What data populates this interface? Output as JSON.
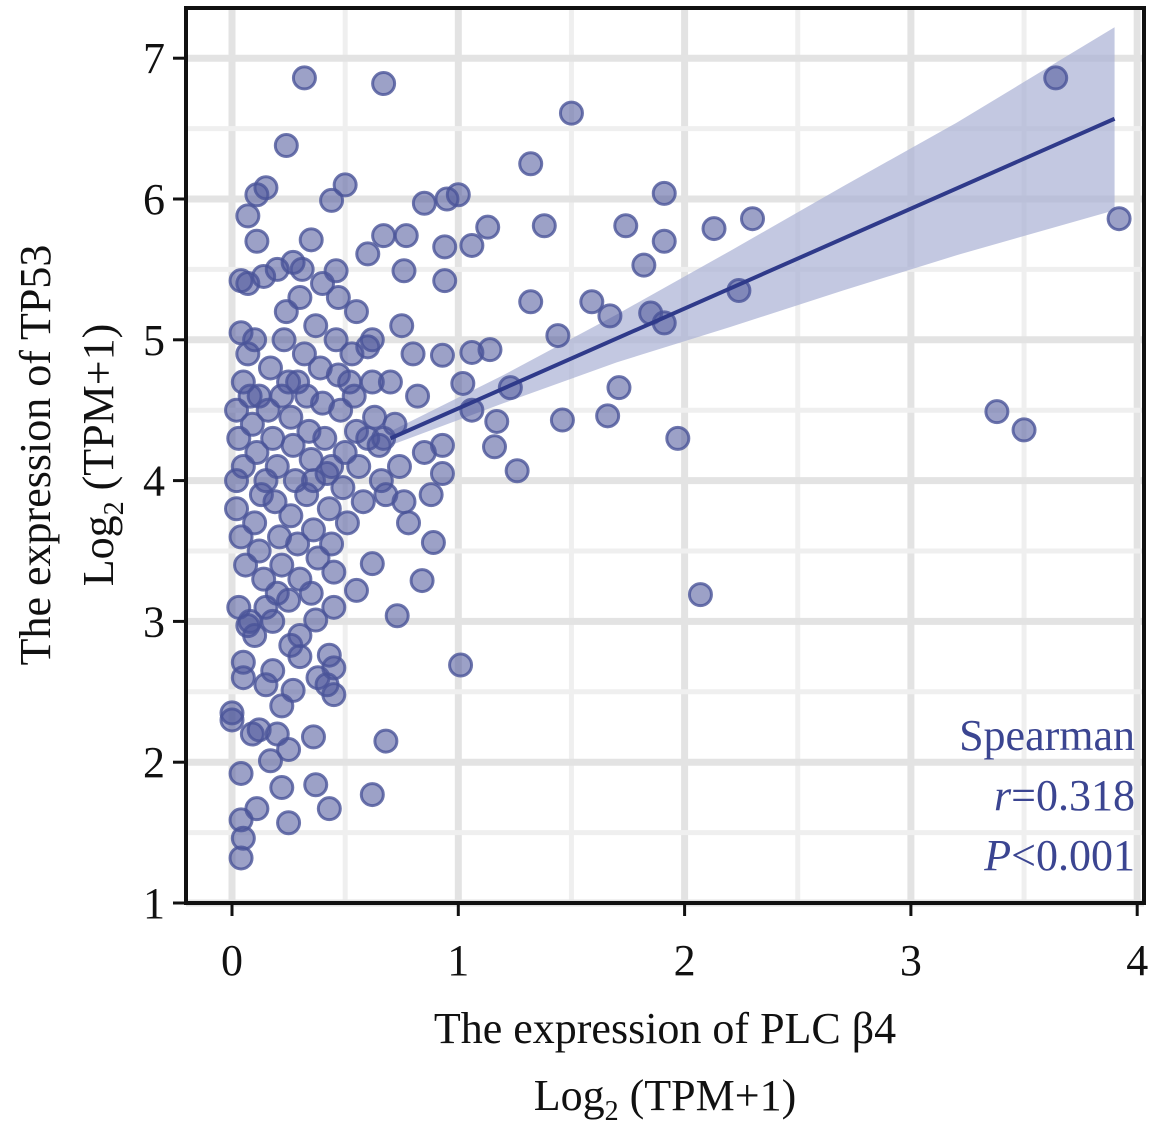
{
  "chart_data": {
    "type": "scatter",
    "title": "",
    "xlabel": "The expression of PLC β4",
    "xlabel_unit": "Log",
    "xlabel_sub": "2",
    "xlabel_tail": " (TPM+1)",
    "ylabel": "The expression of TP53",
    "ylabel_unit": "Log",
    "ylabel_sub": "2",
    "ylabel_tail": " (TPM+1)",
    "xlim": [
      -0.2,
      4.05
    ],
    "ylim": [
      1,
      7.35
    ],
    "xticks": [
      "0",
      "1",
      "2",
      "3",
      "4"
    ],
    "yticks": [
      "1",
      "2",
      "3",
      "4",
      "5",
      "6",
      "7"
    ],
    "grid": true,
    "colors": {
      "point": "#4a5499",
      "line": "#2f3a8a",
      "band": "#aab0d4",
      "text": "#3b4591"
    },
    "annotation": {
      "method": "Spearman",
      "r_label": "r",
      "r_value": "=0.318",
      "p_label": "P",
      "p_value": "<0.001"
    },
    "regression": {
      "x": [
        0.7,
        3.9
      ],
      "y": [
        4.3,
        6.57
      ]
    },
    "band": {
      "x": [
        0.7,
        1.2,
        1.7,
        2.2,
        2.7,
        3.2,
        3.9
      ],
      "upper": [
        4.35,
        4.75,
        5.18,
        5.63,
        6.09,
        6.54,
        7.22
      ],
      "lower": [
        4.25,
        4.55,
        4.84,
        5.09,
        5.35,
        5.6,
        5.92
      ]
    },
    "points": [
      [
        0.32,
        6.86
      ],
      [
        0.67,
        6.82
      ],
      [
        3.64,
        6.86
      ],
      [
        1.5,
        6.61
      ],
      [
        0.24,
        6.38
      ],
      [
        1.32,
        6.25
      ],
      [
        3.92,
        5.86
      ],
      [
        1.91,
        6.04
      ],
      [
        2.3,
        5.86
      ],
      [
        1.74,
        5.81
      ],
      [
        1.38,
        5.81
      ],
      [
        2.13,
        5.79
      ],
      [
        1.91,
        5.7
      ],
      [
        1.82,
        5.53
      ],
      [
        2.24,
        5.35
      ],
      [
        1.32,
        5.27
      ],
      [
        1.59,
        5.27
      ],
      [
        1.67,
        5.17
      ],
      [
        1.85,
        5.19
      ],
      [
        1.91,
        5.12
      ],
      [
        1.44,
        5.03
      ],
      [
        3.38,
        4.49
      ],
      [
        3.5,
        4.36
      ],
      [
        1.46,
        4.43
      ],
      [
        1.71,
        4.66
      ],
      [
        1.66,
        4.46
      ],
      [
        1.97,
        4.3
      ],
      [
        2.07,
        3.19
      ],
      [
        1.23,
        4.66
      ],
      [
        1.26,
        4.07
      ],
      [
        1.01,
        2.69
      ],
      [
        1.17,
        4.42
      ],
      [
        1.16,
        4.24
      ],
      [
        1.13,
        5.8
      ],
      [
        1.0,
        6.03
      ],
      [
        0.95,
        6.0
      ],
      [
        0.85,
        5.97
      ],
      [
        0.94,
        5.66
      ],
      [
        1.06,
        5.67
      ],
      [
        0.94,
        5.42
      ],
      [
        1.14,
        4.93
      ],
      [
        1.06,
        4.91
      ],
      [
        1.02,
        4.69
      ],
      [
        1.06,
        4.5
      ],
      [
        0.93,
        4.89
      ],
      [
        0.93,
        4.25
      ],
      [
        0.93,
        4.05
      ],
      [
        0.89,
        3.56
      ],
      [
        0.84,
        3.29
      ],
      [
        0.73,
        3.04
      ],
      [
        0.68,
        2.15
      ],
      [
        0.62,
        1.77
      ],
      [
        0.62,
        3.41
      ],
      [
        0.55,
        3.22
      ],
      [
        0.46,
        5.49
      ],
      [
        0.5,
        6.1
      ],
      [
        0.44,
        5.99
      ],
      [
        0.35,
        5.71
      ],
      [
        0.15,
        6.08
      ],
      [
        0.11,
        6.03
      ],
      [
        0.07,
        5.88
      ],
      [
        0.11,
        5.7
      ],
      [
        0.67,
        5.74
      ],
      [
        0.77,
        5.74
      ],
      [
        0.76,
        5.49
      ],
      [
        0.6,
        5.61
      ],
      [
        0.04,
        5.42
      ],
      [
        0.04,
        1.32
      ],
      [
        0.05,
        1.46
      ],
      [
        0.04,
        1.59
      ],
      [
        0.25,
        1.57
      ],
      [
        0.11,
        1.67
      ],
      [
        0.04,
        1.92
      ],
      [
        0.17,
        2.01
      ],
      [
        0.0,
        2.35
      ],
      [
        0.0,
        2.3
      ],
      [
        0.12,
        2.23
      ],
      [
        0.22,
        1.82
      ],
      [
        0.37,
        1.84
      ],
      [
        0.43,
        1.67
      ],
      [
        0.36,
        2.18
      ],
      [
        0.25,
        2.09
      ],
      [
        0.27,
        2.51
      ],
      [
        0.18,
        2.65
      ],
      [
        0.45,
        2.48
      ],
      [
        0.45,
        2.67
      ],
      [
        0.43,
        2.76
      ],
      [
        0.05,
        2.71
      ],
      [
        0.26,
        2.83
      ],
      [
        0.07,
        2.97
      ],
      [
        0.3,
        2.9
      ],
      [
        0.37,
        3.01
      ],
      [
        0.02,
        4.5
      ],
      [
        0.03,
        4.3
      ],
      [
        0.05,
        4.1
      ],
      [
        0.02,
        3.8
      ],
      [
        0.04,
        3.6
      ],
      [
        0.06,
        3.4
      ],
      [
        0.03,
        3.1
      ],
      [
        0.08,
        3.0
      ],
      [
        0.05,
        4.7
      ],
      [
        0.07,
        4.9
      ],
      [
        0.04,
        5.05
      ],
      [
        0.1,
        5.0
      ],
      [
        0.12,
        4.6
      ],
      [
        0.09,
        4.4
      ],
      [
        0.11,
        4.2
      ],
      [
        0.13,
        3.9
      ],
      [
        0.1,
        3.7
      ],
      [
        0.12,
        3.5
      ],
      [
        0.14,
        3.3
      ],
      [
        0.15,
        3.1
      ],
      [
        0.17,
        4.8
      ],
      [
        0.16,
        4.5
      ],
      [
        0.18,
        4.3
      ],
      [
        0.2,
        4.1
      ],
      [
        0.19,
        3.85
      ],
      [
        0.21,
        3.6
      ],
      [
        0.22,
        3.4
      ],
      [
        0.2,
        3.2
      ],
      [
        0.24,
        5.2
      ],
      [
        0.23,
        5.0
      ],
      [
        0.25,
        4.7
      ],
      [
        0.26,
        4.45
      ],
      [
        0.27,
        4.25
      ],
      [
        0.28,
        4.0
      ],
      [
        0.26,
        3.75
      ],
      [
        0.29,
        3.55
      ],
      [
        0.3,
        3.3
      ],
      [
        0.31,
        5.5
      ],
      [
        0.3,
        5.3
      ],
      [
        0.32,
        4.9
      ],
      [
        0.33,
        4.6
      ],
      [
        0.34,
        4.35
      ],
      [
        0.35,
        4.15
      ],
      [
        0.33,
        3.9
      ],
      [
        0.36,
        3.65
      ],
      [
        0.38,
        3.45
      ],
      [
        0.37,
        5.1
      ],
      [
        0.39,
        4.8
      ],
      [
        0.4,
        4.55
      ],
      [
        0.41,
        4.3
      ],
      [
        0.42,
        4.05
      ],
      [
        0.43,
        3.8
      ],
      [
        0.44,
        3.55
      ],
      [
        0.45,
        3.35
      ],
      [
        0.46,
        5.0
      ],
      [
        0.47,
        4.75
      ],
      [
        0.48,
        4.5
      ],
      [
        0.5,
        4.2
      ],
      [
        0.49,
        3.95
      ],
      [
        0.51,
        3.7
      ],
      [
        0.53,
        4.9
      ],
      [
        0.54,
        4.6
      ],
      [
        0.55,
        4.35
      ],
      [
        0.56,
        4.1
      ],
      [
        0.58,
        3.85
      ],
      [
        0.6,
        4.95
      ],
      [
        0.62,
        4.7
      ],
      [
        0.63,
        4.45
      ],
      [
        0.65,
        4.25
      ],
      [
        0.66,
        4.0
      ],
      [
        0.68,
        3.9
      ],
      [
        0.7,
        4.7
      ],
      [
        0.72,
        4.4
      ],
      [
        0.74,
        4.1
      ],
      [
        0.76,
        3.85
      ],
      [
        0.78,
        3.7
      ],
      [
        0.8,
        4.9
      ],
      [
        0.82,
        4.6
      ],
      [
        0.85,
        4.2
      ],
      [
        0.88,
        3.9
      ],
      [
        0.07,
        5.4
      ],
      [
        0.14,
        5.45
      ],
      [
        0.2,
        5.5
      ],
      [
        0.27,
        5.55
      ],
      [
        0.4,
        5.4
      ],
      [
        0.47,
        5.3
      ],
      [
        0.55,
        5.2
      ],
      [
        0.62,
        5.0
      ],
      [
        0.75,
        5.1
      ],
      [
        0.02,
        4.0
      ],
      [
        0.08,
        4.6
      ],
      [
        0.15,
        4.0
      ],
      [
        0.22,
        4.6
      ],
      [
        0.29,
        4.7
      ],
      [
        0.36,
        4.0
      ],
      [
        0.44,
        4.1
      ],
      [
        0.52,
        4.7
      ],
      [
        0.1,
        2.9
      ],
      [
        0.18,
        3.0
      ],
      [
        0.25,
        3.15
      ],
      [
        0.35,
        3.2
      ],
      [
        0.45,
        3.1
      ],
      [
        0.05,
        2.6
      ],
      [
        0.15,
        2.55
      ],
      [
        0.22,
        2.4
      ],
      [
        0.09,
        2.2
      ],
      [
        0.2,
        2.2
      ],
      [
        0.3,
        2.75
      ],
      [
        0.38,
        2.6
      ],
      [
        0.42,
        2.55
      ],
      [
        0.6,
        4.3
      ],
      [
        0.67,
        4.3
      ]
    ]
  }
}
